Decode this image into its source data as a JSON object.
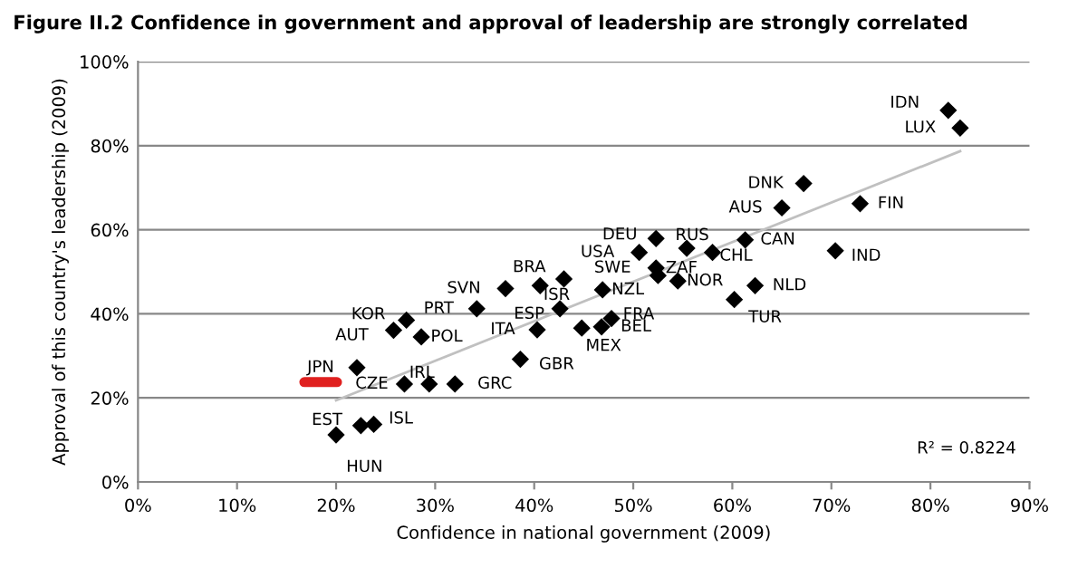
{
  "chart_data": {
    "type": "scatter",
    "title": "Figure II.2 Confidence in government and approval of leadership are strongly correlated",
    "xlabel": "Confidence in national government (2009)",
    "ylabel": "Approval of this country's leadership (2009)",
    "xlim": [
      0,
      90
    ],
    "ylim": [
      0,
      100
    ],
    "xticks": [
      {
        "value": 0,
        "label": "0%"
      },
      {
        "value": 10,
        "label": "10%"
      },
      {
        "value": 20,
        "label": "20%"
      },
      {
        "value": 30,
        "label": "30%"
      },
      {
        "value": 40,
        "label": "40%"
      },
      {
        "value": 50,
        "label": "50%"
      },
      {
        "value": 60,
        "label": "60%"
      },
      {
        "value": 70,
        "label": "70%"
      },
      {
        "value": 80,
        "label": "80%"
      },
      {
        "value": 90,
        "label": "90%"
      }
    ],
    "yticks": [
      {
        "value": 0,
        "label": "0%"
      },
      {
        "value": 20,
        "label": "20%"
      },
      {
        "value": 40,
        "label": "40%"
      },
      {
        "value": 60,
        "label": "60%"
      },
      {
        "value": 80,
        "label": "80%"
      },
      {
        "value": 100,
        "label": "100%"
      }
    ],
    "grid": "y",
    "legend": false,
    "series": [
      {
        "type": "scatter",
        "marker": "diamond",
        "color": "#000000",
        "x": [
          81.8,
          83.0,
          67.2,
          65.0,
          72.9,
          61.3,
          70.4,
          58.0,
          55.4,
          54.5,
          62.3,
          60.2,
          52.5,
          52.3,
          50.6,
          52.3,
          46.9,
          47.8,
          46.8,
          44.8,
          40.3,
          42.6,
          43.0,
          40.6,
          37.1,
          34.2,
          28.6,
          38.6,
          32.0,
          29.4,
          26.9,
          22.1,
          27.1,
          25.8,
          20.0,
          23.8,
          22.5
        ],
        "values": [
          88.4,
          84.2,
          71.0,
          65.2,
          66.2,
          57.6,
          55.0,
          54.6,
          55.6,
          47.8,
          46.7,
          43.4,
          49.1,
          50.9,
          54.6,
          57.9,
          45.7,
          38.9,
          36.9,
          36.6,
          36.2,
          41.2,
          48.3,
          46.7,
          46.0,
          41.2,
          34.5,
          29.2,
          23.3,
          23.3,
          23.3,
          27.2,
          38.5,
          36.1,
          11.2,
          13.7,
          13.4
        ]
      },
      {
        "type": "line",
        "marker": "none",
        "color": "#c0c0c0",
        "x": [
          20,
          83
        ],
        "values": [
          19.4,
          78.7
        ]
      }
    ],
    "annotations": [
      {
        "text": "IDN",
        "x": 81.8,
        "y": 88.4
      },
      {
        "text": "LUX",
        "x": 83.0,
        "y": 84.2
      },
      {
        "text": "DNK",
        "x": 67.2,
        "y": 71.0
      },
      {
        "text": "AUS",
        "x": 65.0,
        "y": 65.2
      },
      {
        "text": "FIN",
        "x": 72.9,
        "y": 66.2
      },
      {
        "text": "CAN",
        "x": 61.3,
        "y": 57.6
      },
      {
        "text": "IND",
        "x": 70.4,
        "y": 55.0
      },
      {
        "text": "CHL",
        "x": 58.0,
        "y": 54.6
      },
      {
        "text": "RUS",
        "x": 55.4,
        "y": 55.6
      },
      {
        "text": "NOR",
        "x": 54.5,
        "y": 47.8
      },
      {
        "text": "NLD",
        "x": 62.3,
        "y": 46.7
      },
      {
        "text": "TUR",
        "x": 60.2,
        "y": 43.4
      },
      {
        "text": "ZAF",
        "x": 52.5,
        "y": 49.1
      },
      {
        "text": "SWE",
        "x": 52.3,
        "y": 50.9
      },
      {
        "text": "USA",
        "x": 50.6,
        "y": 54.6
      },
      {
        "text": "DEU",
        "x": 52.3,
        "y": 57.9
      },
      {
        "text": "NZL",
        "x": 46.9,
        "y": 45.7
      },
      {
        "text": "FRA",
        "x": 47.8,
        "y": 38.9
      },
      {
        "text": "BEL",
        "x": 46.8,
        "y": 36.9
      },
      {
        "text": "MEX",
        "x": 44.8,
        "y": 36.6
      },
      {
        "text": "ITA",
        "x": 40.3,
        "y": 36.2
      },
      {
        "text": "ESP",
        "x": 42.6,
        "y": 41.2
      },
      {
        "text": "ISR",
        "x": 43.0,
        "y": 48.3
      },
      {
        "text": "BRA",
        "x": 40.6,
        "y": 46.7
      },
      {
        "text": "SVN",
        "x": 37.1,
        "y": 46.0
      },
      {
        "text": "PRT",
        "x": 34.2,
        "y": 41.2
      },
      {
        "text": "POL",
        "x": 28.6,
        "y": 34.5
      },
      {
        "text": "GBR",
        "x": 38.6,
        "y": 29.2
      },
      {
        "text": "GRC",
        "x": 32.0,
        "y": 23.3
      },
      {
        "text": "IRL",
        "x": 29.4,
        "y": 23.3
      },
      {
        "text": "CZE",
        "x": 26.9,
        "y": 23.3
      },
      {
        "text": "JPN",
        "x": 22.1,
        "y": 27.2
      },
      {
        "text": "KOR",
        "x": 27.1,
        "y": 38.5
      },
      {
        "text": "AUT",
        "x": 25.8,
        "y": 36.1
      },
      {
        "text": "EST",
        "x": 20.0,
        "y": 11.2
      },
      {
        "text": "ISL",
        "x": 23.8,
        "y": 13.7
      },
      {
        "text": "HUN",
        "x": 22.5,
        "y": 13.4
      },
      "R² = 0.8224"
    ]
  }
}
